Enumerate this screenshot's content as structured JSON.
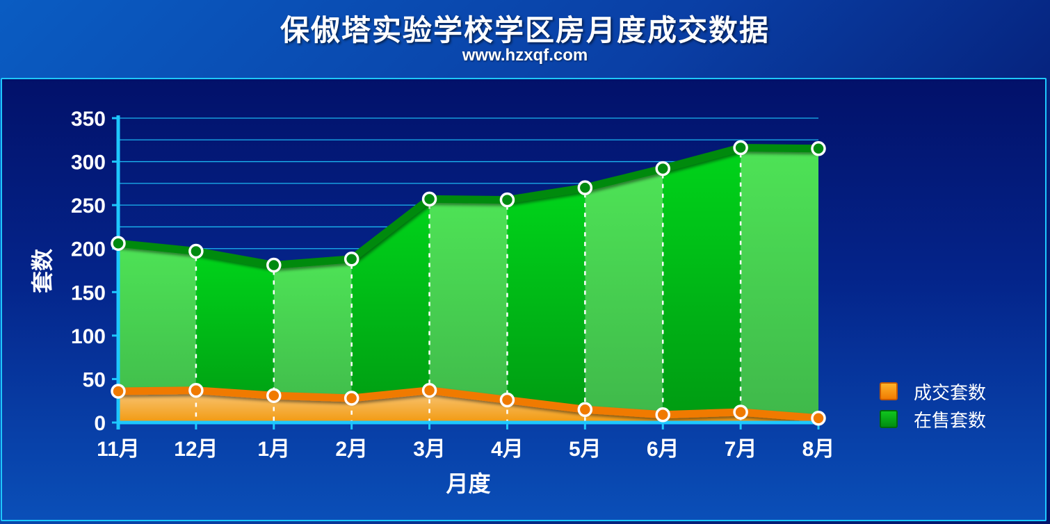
{
  "header": {
    "title": "保俶塔实验学校学区房月度成交数据",
    "subtitle": "www.hzxqf.com"
  },
  "colors": {
    "listed_fill_light": "#44d84c",
    "listed_fill_dark": "#00b514",
    "listed_line": "#008a10",
    "sold_fill": "#f6b43a",
    "sold_line": "#f07a00",
    "axis": "#1ec8ff",
    "grid": "#1ec8ff"
  },
  "chart_data": {
    "type": "area",
    "title": "保俶塔实验学校学区房月度成交数据",
    "subtitle": "www.hzxqf.com",
    "xlabel": "月度",
    "ylabel": "套数",
    "categories": [
      "11月",
      "12月",
      "1月",
      "2月",
      "3月",
      "4月",
      "5月",
      "6月",
      "7月",
      "8月"
    ],
    "ylim": [
      0,
      350
    ],
    "yticks": [
      0,
      50,
      100,
      150,
      200,
      250,
      300,
      350
    ],
    "grid": true,
    "legend_position": "right",
    "series": [
      {
        "name": "成交套数",
        "values": [
          36,
          37,
          31,
          28,
          37,
          26,
          15,
          9,
          12,
          5
        ],
        "color": "#f07a00"
      },
      {
        "name": "在售套数",
        "values": [
          206,
          197,
          181,
          188,
          257,
          256,
          270,
          292,
          316,
          315
        ],
        "color": "#008a10"
      }
    ]
  }
}
